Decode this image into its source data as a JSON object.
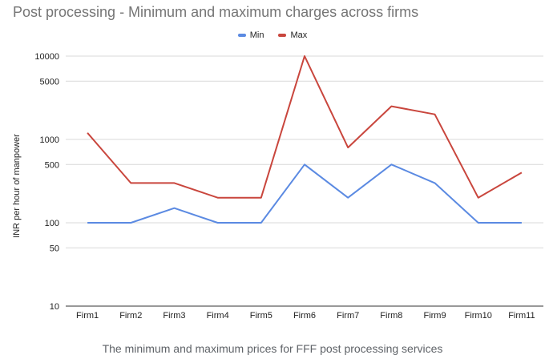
{
  "chart_data": {
    "type": "line",
    "title": "Post processing - Minimum and maximum charges across firms",
    "ylabel": "INR per hour of manpower",
    "xlabel": "",
    "caption": "The minimum and maximum prices for FFF post processing services",
    "y_scale": "log",
    "ylim": [
      10,
      10000
    ],
    "y_ticks": [
      "10",
      "50",
      "100",
      "500",
      "1000",
      "5000",
      "10000"
    ],
    "grid": true,
    "legend_position": "top",
    "categories": [
      "Firm1",
      "Firm2",
      "Firm3",
      "Firm4",
      "Firm5",
      "Firm6",
      "Firm7",
      "Firm8",
      "Firm9",
      "Firm10",
      "Firm11"
    ],
    "series": [
      {
        "name": "Min",
        "color": "#5b8ae2",
        "values": [
          100,
          100,
          150,
          100,
          100,
          500,
          200,
          500,
          300,
          100,
          100
        ]
      },
      {
        "name": "Max",
        "color": "#c9463d",
        "values": [
          1200,
          300,
          300,
          200,
          200,
          10000,
          800,
          2500,
          2000,
          200,
          400
        ]
      }
    ]
  }
}
